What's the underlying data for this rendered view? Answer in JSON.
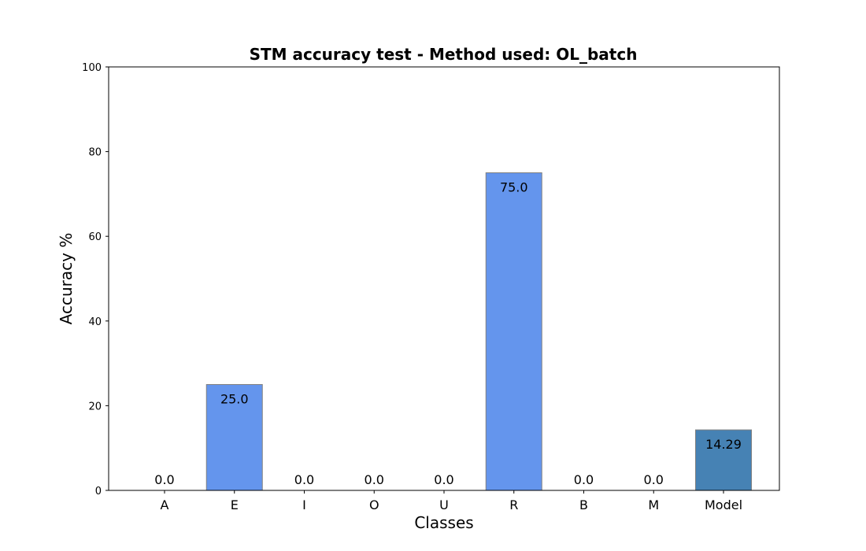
{
  "chart_data": {
    "type": "bar",
    "title": "STM accuracy test - Method used: OL_batch",
    "xlabel": "Classes",
    "ylabel": "Accuracy %",
    "ylim": [
      0,
      100
    ],
    "yticks": [
      0,
      20,
      40,
      60,
      80,
      100
    ],
    "grid": false,
    "categories": [
      "A",
      "E",
      "I",
      "O",
      "U",
      "R",
      "B",
      "M",
      "Model"
    ],
    "values": [
      0.0,
      25.0,
      0.0,
      0.0,
      0.0,
      75.0,
      0.0,
      0.0,
      14.29
    ],
    "value_labels": [
      "0.0",
      "25.0",
      "0.0",
      "0.0",
      "0.0",
      "75.0",
      "0.0",
      "0.0",
      "14.29"
    ],
    "colors": [
      "#6495ED",
      "#6495ED",
      "#6495ED",
      "#6495ED",
      "#6495ED",
      "#6495ED",
      "#6495ED",
      "#6495ED",
      "#4682B4"
    ],
    "edge_color": "#808080"
  }
}
